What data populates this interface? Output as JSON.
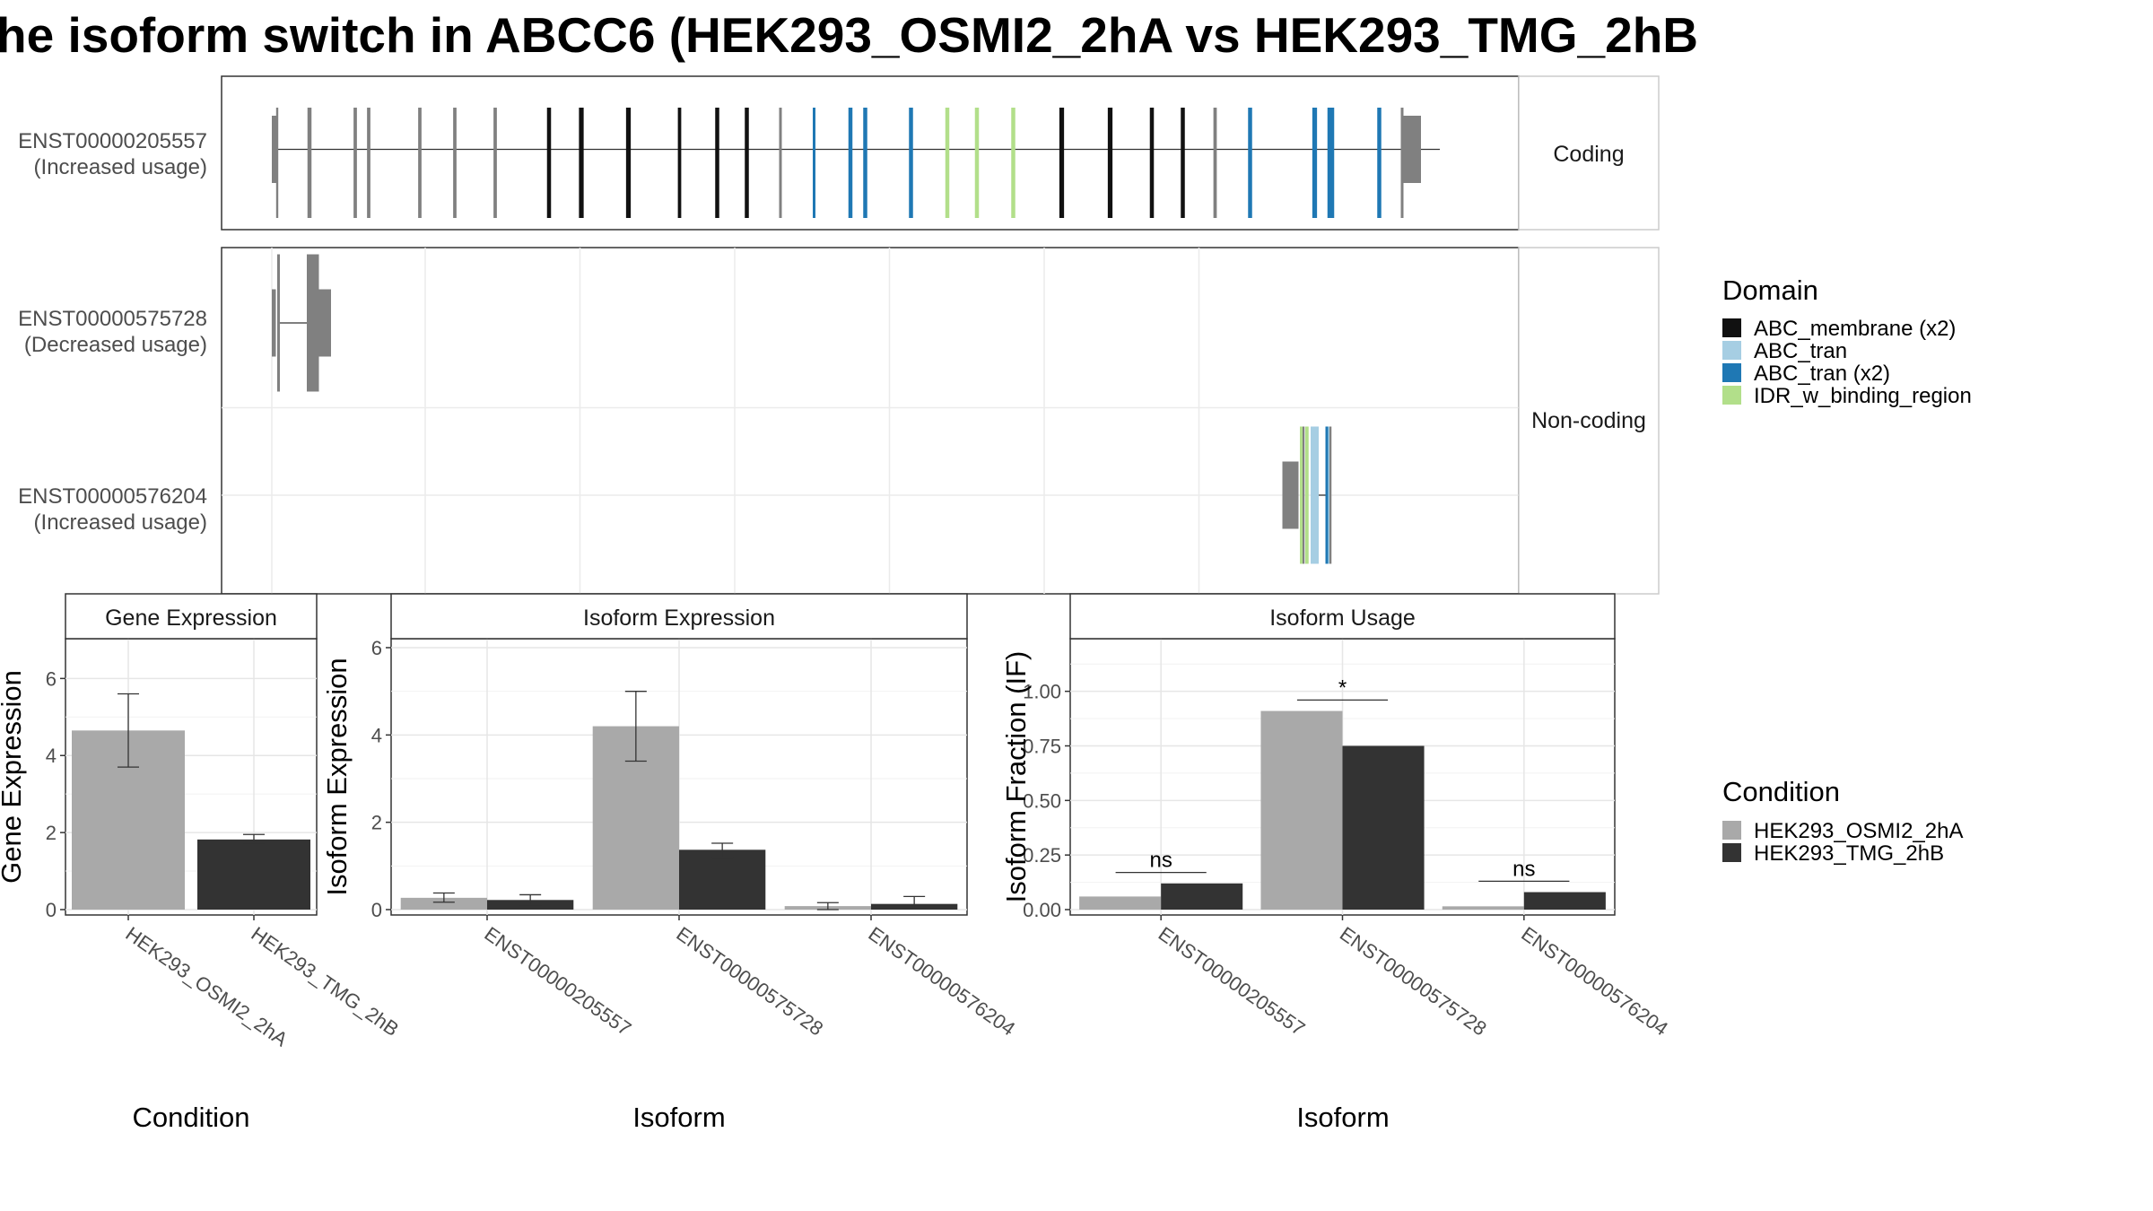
{
  "title": "he isoform switch in ABCC6 (HEK293_OSMI2_2hA vs HEK293_TMG_2hB",
  "colors": {
    "cond_a": "#a9a9a9",
    "cond_b": "#333333",
    "exon_none": "#808080",
    "abc_membrane": "#111111",
    "abc_tran": "#a6cee3",
    "abc_tran_x2": "#1f78b4",
    "idr": "#b2df8a"
  },
  "structure": {
    "facets": [
      {
        "label": "Coding"
      },
      {
        "label": "Non-coding"
      }
    ],
    "transcripts": [
      {
        "id": "ENST00000205557",
        "note": "(Increased usage)"
      },
      {
        "id": "ENST00000575728",
        "note": "(Decreased usage)"
      },
      {
        "id": "ENST00000576204",
        "note": "(Increased usage)"
      }
    ]
  },
  "legend_domain": {
    "title": "Domain",
    "items": [
      {
        "label": "ABC_membrane (x2)",
        "color": "#111111"
      },
      {
        "label": "ABC_tran",
        "color": "#a6cee3"
      },
      {
        "label": "ABC_tran (x2)",
        "color": "#1f78b4"
      },
      {
        "label": "IDR_w_binding_region",
        "color": "#b2df8a"
      }
    ]
  },
  "legend_condition": {
    "title": "Condition",
    "items": [
      {
        "label": "HEK293_OSMI2_2hA",
        "color": "#a9a9a9"
      },
      {
        "label": "HEK293_TMG_2hB",
        "color": "#333333"
      }
    ]
  },
  "chart_data": [
    {
      "type": "bar",
      "panel": "Gene Expression",
      "xlabel": "Condition",
      "ylabel": "Gene Expression",
      "ylim": [
        0,
        6.8
      ],
      "yticks": [
        "0",
        "2",
        "4",
        "6"
      ],
      "categories": [
        "HEK293_OSMI2_2hA",
        "HEK293_TMG_2hB"
      ],
      "values": [
        4.65,
        1.82
      ],
      "errors": [
        [
          3.7,
          5.6
        ],
        [
          1.72,
          1.95
        ]
      ]
    },
    {
      "type": "bar",
      "panel": "Isoform Expression",
      "xlabel": "Isoform",
      "ylabel": "Isoform Expression",
      "ylim": [
        0,
        6.0
      ],
      "yticks": [
        "0",
        "2",
        "4",
        "6"
      ],
      "categories": [
        "ENST00000205557",
        "ENST00000575728",
        "ENST00000576204"
      ],
      "series": [
        {
          "name": "HEK293_OSMI2_2hA",
          "values": [
            0.27,
            4.2,
            0.08
          ],
          "errors": [
            [
              0.17,
              0.38
            ],
            [
              3.4,
              5.0
            ],
            [
              0.0,
              0.16
            ]
          ]
        },
        {
          "name": "HEK293_TMG_2hB",
          "values": [
            0.22,
            1.37,
            0.13
          ],
          "errors": [
            [
              0.1,
              0.34
            ],
            [
              1.2,
              1.52
            ],
            [
              0.02,
              0.3
            ]
          ]
        }
      ]
    },
    {
      "type": "bar",
      "panel": "Isoform Usage",
      "xlabel": "Isoform",
      "ylabel": "Isoform Fraction (IF)",
      "ylim": [
        0,
        1.2
      ],
      "yticks": [
        "0.00",
        "0.25",
        "0.50",
        "0.75",
        "1.00"
      ],
      "categories": [
        "ENST00000205557",
        "ENST00000575728",
        "ENST00000576204"
      ],
      "series": [
        {
          "name": "HEK293_OSMI2_2hA",
          "values": [
            0.06,
            0.91,
            0.015
          ]
        },
        {
          "name": "HEK293_TMG_2hB",
          "values": [
            0.12,
            0.75,
            0.08
          ]
        }
      ],
      "significance": [
        {
          "label": "ns",
          "y": 0.17
        },
        {
          "label": "*",
          "y": 0.96
        },
        {
          "label": "ns",
          "y": 0.13
        }
      ]
    }
  ]
}
